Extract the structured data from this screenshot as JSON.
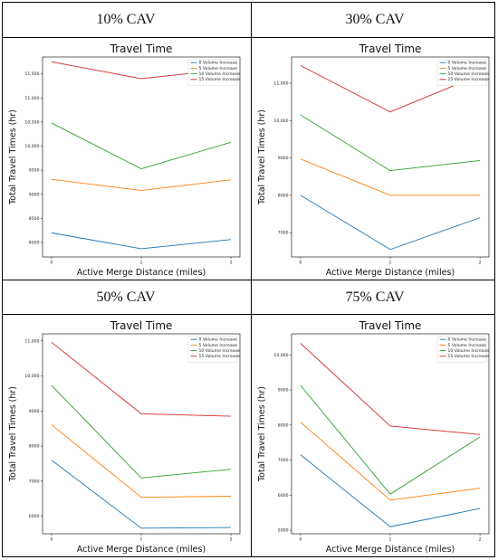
{
  "panels": [
    {
      "header": "10% CAV",
      "chart_data": {
        "type": "line",
        "title": "Travel Time",
        "xlabel": "Active Merge Distance (miles)",
        "ylabel": "Total Travel Times (hr)",
        "categories": [
          0,
          1,
          2
        ],
        "x_ticks": [
          "0",
          "1",
          "2"
        ],
        "y_ticks": [
          8000,
          8500,
          9000,
          9500,
          10000,
          10500,
          11000,
          11500
        ],
        "y_tick_labels": [
          "8000",
          "8500",
          "9000",
          "9500",
          "10,000",
          "10,500",
          "11,000",
          "11,500"
        ],
        "ylim": [
          7700,
          11850
        ],
        "legend_position": "top-right",
        "series": [
          {
            "name": "0 Volume Increase",
            "color": "#1f77b4",
            "values": [
              8200,
              7870,
              8060
            ]
          },
          {
            "name": "5 Volume Increase",
            "color": "#ff7f0e",
            "values": [
              9310,
              9080,
              9300
            ]
          },
          {
            "name": "10 Volume Increase",
            "color": "#2ca02c",
            "values": [
              10480,
              9530,
              10080
            ]
          },
          {
            "name": "15 Volume Increase",
            "color": "#d62728",
            "values": [
              11750,
              11400,
              11600
            ]
          }
        ]
      }
    },
    {
      "header": "30% CAV",
      "chart_data": {
        "type": "line",
        "title": "Travel Time",
        "xlabel": "Active Merge Distance (miles)",
        "ylabel": "Total Travel Times (hr)",
        "categories": [
          0,
          1,
          2
        ],
        "x_ticks": [
          "0",
          "1",
          "2"
        ],
        "y_ticks": [
          7000,
          8000,
          9000,
          10000,
          11000
        ],
        "y_tick_labels": [
          "7000",
          "8000",
          "9000",
          "10,000",
          "11,000"
        ],
        "ylim": [
          6350,
          11700
        ],
        "legend_position": "top-right",
        "series": [
          {
            "name": "0 Volume Increase",
            "color": "#1f77b4",
            "values": [
              8000,
              6550,
              7400
            ]
          },
          {
            "name": "5 Volume Increase",
            "color": "#ff7f0e",
            "values": [
              8970,
              8000,
              8000
            ]
          },
          {
            "name": "10 Volume Increase",
            "color": "#2ca02c",
            "values": [
              10150,
              8660,
              8930
            ]
          },
          {
            "name": "15 Volume Increase",
            "color": "#d62728",
            "values": [
              11470,
              10230,
              11220
            ]
          }
        ]
      }
    },
    {
      "header": "50% CAV",
      "chart_data": {
        "type": "line",
        "title": "Travel Time",
        "xlabel": "Active Merge Distance (miles)",
        "ylabel": "Total Travel Times (hr)",
        "categories": [
          0,
          1,
          2
        ],
        "x_ticks": [
          "0",
          "1",
          "2"
        ],
        "y_ticks": [
          6000,
          7000,
          8000,
          9000,
          10000,
          11000
        ],
        "y_tick_labels": [
          "6000",
          "7000",
          "8000",
          "9000",
          "10,000",
          "11,000"
        ],
        "ylim": [
          5500,
          11200
        ],
        "legend_position": "top-right",
        "series": [
          {
            "name": "0 Volume Increase",
            "color": "#1f77b4",
            "values": [
              7600,
              5660,
              5680
            ]
          },
          {
            "name": "5 Volume Increase",
            "color": "#ff7f0e",
            "values": [
              8610,
              6540,
              6570
            ]
          },
          {
            "name": "10 Volume Increase",
            "color": "#2ca02c",
            "values": [
              9730,
              7090,
              7340
            ]
          },
          {
            "name": "15 Volume Increase",
            "color": "#d62728",
            "values": [
              10960,
              8920,
              8850
            ]
          }
        ]
      }
    },
    {
      "header": "75% CAV",
      "chart_data": {
        "type": "line",
        "title": "Travel Time",
        "xlabel": "Active Merge Distance (miles)",
        "ylabel": "Total Travel Times (hr)",
        "categories": [
          0,
          1,
          2
        ],
        "x_ticks": [
          "0",
          "1",
          "2"
        ],
        "y_ticks": [
          5000,
          6000,
          7000,
          8000,
          9000,
          10000
        ],
        "y_tick_labels": [
          "5000",
          "6000",
          "7000",
          "8000",
          "9000",
          "10,000"
        ],
        "ylim": [
          4900,
          10600
        ],
        "legend_position": "top-right",
        "series": [
          {
            "name": "0 Volume Increase",
            "color": "#1f77b4",
            "values": [
              7150,
              5100,
              5620
            ]
          },
          {
            "name": "5 Volume Increase",
            "color": "#ff7f0e",
            "values": [
              8080,
              5860,
              6200
            ]
          },
          {
            "name": "10 Volume Increase",
            "color": "#2ca02c",
            "values": [
              9130,
              6030,
              7660
            ]
          },
          {
            "name": "15 Volume Increase",
            "color": "#d62728",
            "values": [
              10330,
              7970,
              7730
            ]
          }
        ]
      }
    }
  ]
}
